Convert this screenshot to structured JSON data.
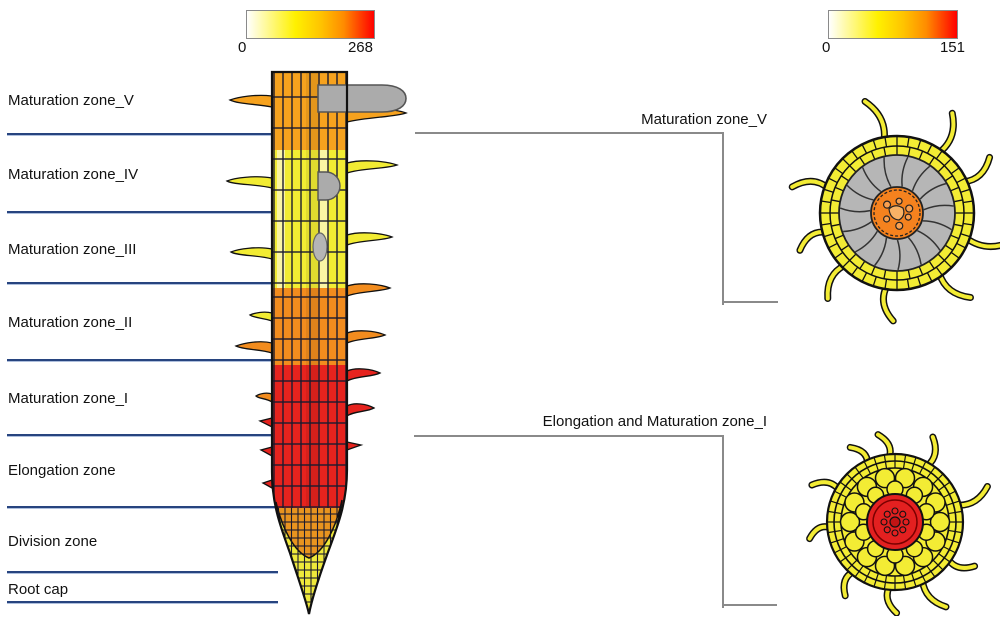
{
  "colorbars": {
    "left": {
      "min_label": "0",
      "max_label": "268"
    },
    "right": {
      "min_label": "0",
      "max_label": "151"
    },
    "gradient": [
      "#FFFFFF",
      "#FFF100",
      "#FF8C00",
      "#FF0000"
    ]
  },
  "zone_labels": {
    "items": [
      {
        "label": "Maturation zone_V"
      },
      {
        "label": "Maturation zone_IV"
      },
      {
        "label": "Maturation zone_III"
      },
      {
        "label": "Maturation zone_II"
      },
      {
        "label": "Maturation zone_I"
      },
      {
        "label": "Elongation zone"
      },
      {
        "label": "Division zone"
      },
      {
        "label": "Root cap"
      }
    ]
  },
  "cross_sections": {
    "top": {
      "label": "Maturation zone_V"
    },
    "bottom": {
      "label": "Elongation and Maturation zone_I"
    }
  },
  "colors": {
    "zone_v_orange": "#F6A21E",
    "maturation_yellow": "#F2EC33",
    "zone_ii_orange": "#F28C1E",
    "elongation_red": "#E6231E",
    "division_orange": "#E8941F",
    "root_cap_yellow": "#EFE93B",
    "lateral_root_gray": "#ABABAB",
    "cortex_gray": "#B6B6B6",
    "stele_orange": "#F5821E",
    "stele_red": "#E32020",
    "section_yellow": "#F3EC34",
    "divider_navy": "#27447F",
    "bracket_gray": "#8A8A8A",
    "cell_wall": "#1A1A2E"
  }
}
